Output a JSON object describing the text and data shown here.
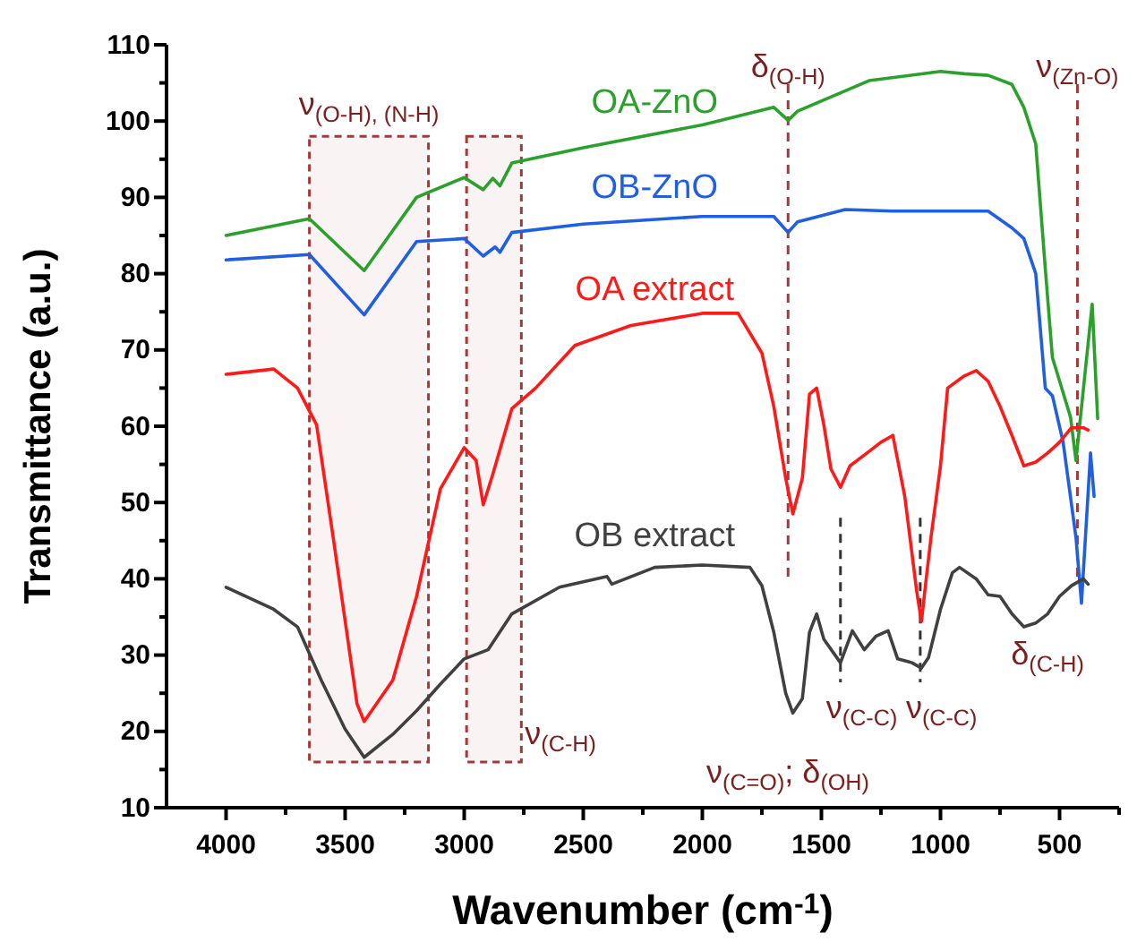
{
  "chart_data": {
    "type": "line",
    "xlabel": "Wavenumber (cm$^{-1}$)",
    "ylabel": "Transmittance (a.u.)",
    "xlim": [
      4250,
      250
    ],
    "ylim": [
      10,
      110
    ],
    "xticks": [
      4000,
      {
        "value": 3750,
        "label": null
      },
      3500,
      {
        "value": 3250,
        "label": null
      },
      3000,
      {
        "value": 2750,
        "label": null
      },
      2500,
      {
        "value": 2250,
        "label": null
      },
      2000,
      {
        "value": 1750,
        "label": null
      },
      1500,
      {
        "value": 1250,
        "label": null
      },
      1000,
      {
        "value": 750,
        "label": null
      },
      500,
      {
        "value": 250,
        "label": null
      }
    ],
    "yticks": [
      10,
      {
        "value": 15,
        "label": null
      },
      20,
      {
        "value": 25,
        "label": null
      },
      30,
      {
        "value": 35,
        "label": null
      },
      40,
      {
        "value": 45,
        "label": null
      },
      50,
      {
        "value": 55,
        "label": null
      },
      60,
      {
        "value": 65,
        "label": null
      },
      70,
      {
        "value": 75,
        "label": null
      },
      80,
      {
        "value": 85,
        "label": null
      },
      90,
      {
        "value": 95,
        "label": null
      },
      100,
      {
        "value": 105,
        "label": null
      },
      110
    ],
    "grid": false,
    "legend": false,
    "marker": "none",
    "line_style": "solid",
    "series": [
      {
        "name": "OA-ZnO",
        "color": "#2ca02c",
        "x": [
          4000,
          3650,
          3420,
          3200,
          3000,
          2920,
          2880,
          2850,
          2800,
          2500,
          2000,
          1700,
          1640,
          1600,
          1300,
          1000,
          900,
          800,
          700,
          650,
          600,
          560,
          530,
          454,
          431,
          363,
          340
        ],
        "values": [
          85,
          87.2,
          80.4,
          90,
          92.6,
          91,
          92.5,
          91.5,
          94.5,
          96.5,
          99.5,
          101.8,
          100.1,
          101.3,
          105.3,
          106.5,
          106.2,
          106,
          104.8,
          101.8,
          97,
          80.7,
          69,
          61.2,
          55.5,
          76,
          61
        ]
      },
      {
        "name": "OB-ZnO",
        "color": "#1f5fe0",
        "x": [
          4000,
          3650,
          3420,
          3200,
          3000,
          2920,
          2870,
          2850,
          2800,
          2500,
          2000,
          1700,
          1640,
          1600,
          1400,
          1200,
          1000,
          800,
          700,
          650,
          600,
          560,
          530,
          485,
          431,
          408,
          370,
          355
        ],
        "values": [
          81.8,
          82.5,
          74.6,
          84.2,
          84.6,
          82.3,
          83.5,
          82.8,
          85.4,
          86.5,
          87.5,
          87.5,
          85.4,
          86.8,
          88.4,
          88.2,
          88.2,
          88.2,
          86,
          84.6,
          80,
          65,
          64,
          57.9,
          45.4,
          36.8,
          56.5,
          50.8
        ]
      },
      {
        "name": "OA extract",
        "color": "#ff1a1a",
        "x": [
          4000,
          3800,
          3700,
          3620,
          3550,
          3450,
          3420,
          3300,
          3200,
          3100,
          3000,
          2950,
          2920,
          2880,
          2800,
          2700,
          2535,
          2300,
          2000,
          1850,
          1750,
          1700,
          1650,
          1620,
          1580,
          1550,
          1520,
          1490,
          1460,
          1420,
          1380,
          1300,
          1250,
          1200,
          1150,
          1100,
          1080,
          1060,
          1040,
          1000,
          970,
          900,
          850,
          800,
          750,
          700,
          650,
          600,
          550,
          500,
          450,
          400,
          380
        ],
        "values": [
          66.8,
          67.5,
          65,
          60.2,
          45.4,
          23.6,
          21.3,
          26.7,
          37.7,
          51.8,
          57.2,
          55.5,
          49.7,
          53.7,
          62.3,
          65,
          70.6,
          73.2,
          74.8,
          74.8,
          69.6,
          62.6,
          53.2,
          48.5,
          53.2,
          64.2,
          65,
          60.2,
          54.4,
          52,
          54.8,
          56.7,
          57.9,
          58.8,
          50.8,
          38.4,
          34.4,
          40,
          45.4,
          54.8,
          65,
          66.6,
          67.3,
          65.9,
          62.6,
          58.8,
          54.8,
          55.3,
          56.5,
          57.9,
          59.8,
          59.8,
          59.5
        ]
      },
      {
        "name": "OB extract",
        "color": "#404040",
        "x": [
          4000,
          3800,
          3700,
          3600,
          3500,
          3420,
          3300,
          3200,
          3100,
          3000,
          2900,
          2800,
          2600,
          2400,
          2380,
          2200,
          2000,
          1800,
          1750,
          1700,
          1650,
          1620,
          1580,
          1550,
          1520,
          1490,
          1420,
          1370,
          1320,
          1270,
          1220,
          1180,
          1120,
          1080,
          1050,
          1000,
          950,
          920,
          850,
          800,
          750,
          700,
          650,
          600,
          550,
          500,
          450,
          400,
          380
        ],
        "values": [
          38.9,
          36,
          33.7,
          26.7,
          20.3,
          16.6,
          19.6,
          22.7,
          26.2,
          29.5,
          30.7,
          35.4,
          38.9,
          40.3,
          39.3,
          41.5,
          41.8,
          41.5,
          39.1,
          33,
          25,
          22.4,
          24.3,
          33,
          35.4,
          32.1,
          29,
          33.2,
          30.7,
          32.5,
          33.2,
          29.5,
          29,
          28.3,
          29.7,
          36,
          40.8,
          41.5,
          40,
          37.9,
          37.7,
          35.4,
          33.7,
          34.2,
          35.4,
          37.7,
          39.1,
          40,
          39.3
        ]
      }
    ],
    "bands": [
      {
        "axis": "x",
        "from": 3650,
        "to": 3150,
        "color": "#a33a3a",
        "label": "ν$_{(O-H), (N-H)}$"
      },
      {
        "axis": "x",
        "from": 2990,
        "to": 2760,
        "color": "#a33a3a",
        "label": "ν$_{(C-H)}$"
      }
    ],
    "ref_lines": [
      {
        "axis": "x",
        "value": 1640,
        "color": "#a33a3a",
        "line_style": "dashed",
        "label": "δ$_{(O-H)}$"
      },
      {
        "axis": "x",
        "value": 1420,
        "color": "#333333",
        "line_style": "dashed",
        "label": "ν$_{(C-C)}$"
      },
      {
        "axis": "x",
        "value": 1085,
        "color": "#333333",
        "line_style": "dashed",
        "label": "ν$_{(C-C)}$"
      },
      {
        "axis": "x",
        "value": 425,
        "color": "#a33a3a",
        "line_style": "dashed",
        "label": "ν$_{(Zn-O)}$"
      }
    ],
    "annotations": [
      "ν$_{(C=O)}$; δ$_{(OH)}$",
      "δ$_{(C-H)}$"
    ]
  }
}
